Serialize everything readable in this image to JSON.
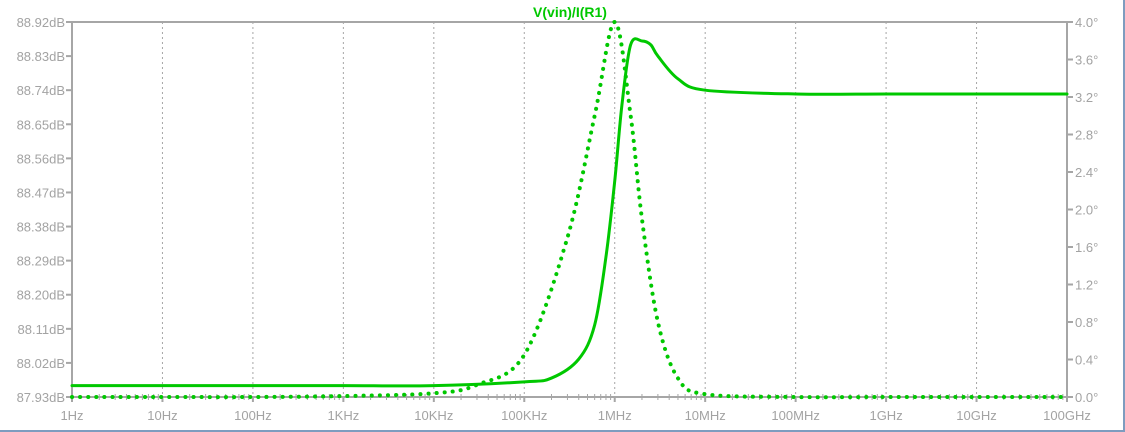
{
  "chart_data": {
    "type": "line",
    "title": "V(vin)/I(R1)",
    "x_scale": "log",
    "x_range_hz": [
      1,
      100000000000
    ],
    "x_ticks": [
      {
        "value": 1,
        "label": "1Hz"
      },
      {
        "value": 10,
        "label": "10Hz"
      },
      {
        "value": 100,
        "label": "100Hz"
      },
      {
        "value": 1000,
        "label": "1KHz"
      },
      {
        "value": 10000,
        "label": "10KHz"
      },
      {
        "value": 100000,
        "label": "100KHz"
      },
      {
        "value": 1000000,
        "label": "1MHz"
      },
      {
        "value": 10000000,
        "label": "10MHz"
      },
      {
        "value": 100000000,
        "label": "100MHz"
      },
      {
        "value": 1000000000,
        "label": "1GHz"
      },
      {
        "value": 10000000000,
        "label": "10GHz"
      },
      {
        "value": 100000000000,
        "label": "100GHz"
      }
    ],
    "left_axis": {
      "unit": "dB",
      "range": [
        87.93,
        88.92
      ],
      "ticks": [
        "87.93dB",
        "88.02dB",
        "88.11dB",
        "88.20dB",
        "88.29dB",
        "88.38dB",
        "88.47dB",
        "88.56dB",
        "88.65dB",
        "88.74dB",
        "88.83dB",
        "88.92dB"
      ]
    },
    "right_axis": {
      "unit": "°",
      "range": [
        0.0,
        4.0
      ],
      "ticks": [
        "0.0°",
        "0.4°",
        "0.8°",
        "1.2°",
        "1.6°",
        "2.0°",
        "2.4°",
        "2.8°",
        "3.2°",
        "3.6°",
        "4.0°"
      ]
    },
    "series": [
      {
        "style": "solid",
        "axis": "left",
        "x": [
          1,
          10,
          100,
          1000,
          10000,
          100000,
          200000,
          400000,
          600000,
          800000,
          1000000,
          1200000,
          1500000,
          2000000,
          2500000,
          3000000,
          5000000,
          10000000,
          100000000,
          1000000000,
          10000000000,
          100000000000
        ],
        "values": [
          87.96,
          87.96,
          87.96,
          87.96,
          87.96,
          87.97,
          87.98,
          88.03,
          88.12,
          88.3,
          88.5,
          88.7,
          88.86,
          88.87,
          88.86,
          88.83,
          88.77,
          88.74,
          88.73,
          88.73,
          88.73,
          88.73
        ]
      },
      {
        "style": "dotted",
        "axis": "right",
        "x": [
          1,
          10,
          100,
          1000,
          10000,
          30000,
          100000,
          300000,
          600000,
          1000000,
          1500000,
          2000000,
          3000000,
          5000000,
          10000000,
          100000000,
          1000000000,
          10000000000,
          100000000000
        ],
        "values": [
          0.0,
          0.0,
          0.0,
          0.01,
          0.04,
          0.13,
          0.45,
          1.7,
          3.0,
          4.0,
          3.0,
          1.9,
          0.8,
          0.2,
          0.03,
          0.0,
          0.0,
          0.0,
          0.0
        ]
      }
    ],
    "line_color": "#00c800",
    "grid_color": "#a6a6a6",
    "grid": "x-only dashed"
  }
}
